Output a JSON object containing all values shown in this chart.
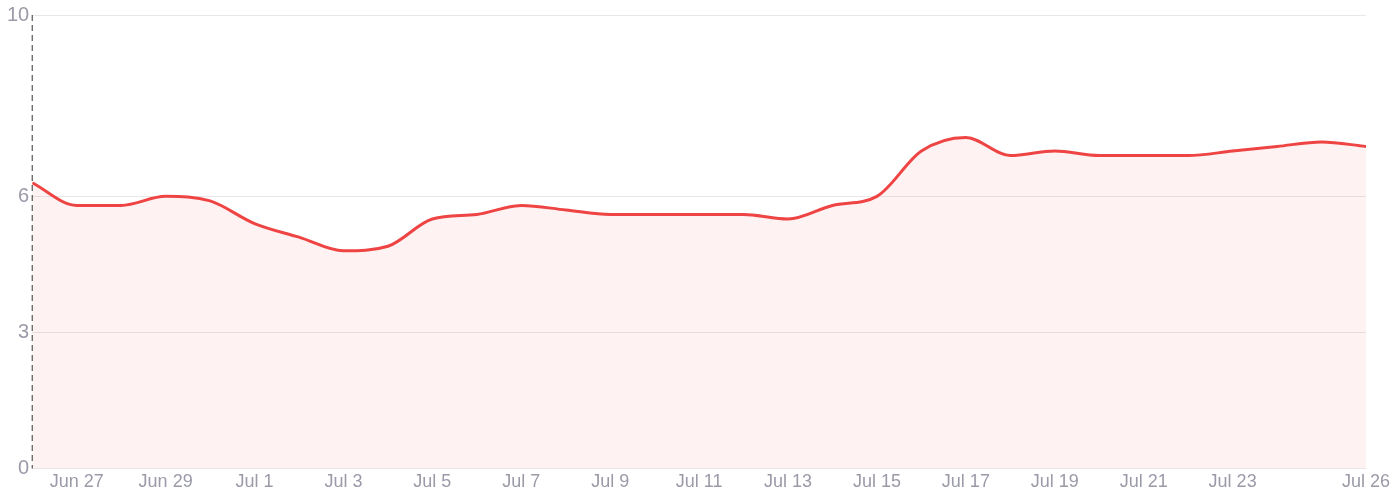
{
  "chart_data": {
    "type": "area",
    "x": [
      "--06-26",
      "--06-27",
      "--06-28",
      "--06-29",
      "--06-30",
      "--07-01",
      "--07-02",
      "--07-03",
      "--07-04",
      "--07-05",
      "--07-06",
      "--07-07",
      "--07-08",
      "--07-09",
      "--07-10",
      "--07-11",
      "--07-12",
      "--07-13",
      "--07-14",
      "--07-15",
      "--07-16",
      "--07-17",
      "--07-18",
      "--07-19",
      "--07-20",
      "--07-21",
      "--07-22",
      "--07-23",
      "--07-24",
      "--07-25",
      "--07-26"
    ],
    "series": [
      {
        "color": "#ef4444",
        "values": [
          6.3,
          5.8,
          5.8,
          6.0,
          5.9,
          5.4,
          5.1,
          4.8,
          4.9,
          5.5,
          5.6,
          5.8,
          5.7,
          5.6,
          5.6,
          5.6,
          5.6,
          5.5,
          5.8,
          6.0,
          7.0,
          7.3,
          6.9,
          7.0,
          6.9,
          6.9,
          6.9,
          7.0,
          7.1,
          7.2,
          7.1
        ]
      }
    ],
    "xlim": [
      "--06-26",
      "--07-26"
    ],
    "xticks": [
      {
        "value": "--06-27",
        "label": "Jun 27"
      },
      {
        "value": "--06-29",
        "label": "Jun 29"
      },
      {
        "value": "--07-01",
        "label": "Jul 1"
      },
      {
        "value": "--07-03",
        "label": "Jul 3"
      },
      {
        "value": "--07-05",
        "label": "Jul 5"
      },
      {
        "value": "--07-07",
        "label": "Jul 7"
      },
      {
        "value": "--07-09",
        "label": "Jul 9"
      },
      {
        "value": "--07-11",
        "label": "Jul 11"
      },
      {
        "value": "--07-13",
        "label": "Jul 13"
      },
      {
        "value": "--07-15",
        "label": "Jul 15"
      },
      {
        "value": "--07-17",
        "label": "Jul 17"
      },
      {
        "value": "--07-19",
        "label": "Jul 19"
      },
      {
        "value": "--07-21",
        "label": "Jul 21"
      },
      {
        "value": "--07-23",
        "label": "Jul 23"
      },
      {
        "value": "--07-26",
        "label": "Jul 26"
      }
    ],
    "ylim": [
      0,
      10
    ],
    "yticks": [
      0,
      3,
      6,
      10
    ],
    "grid": "y",
    "legend": false,
    "marker": "none",
    "line_style": "solid",
    "ref_lines": [
      {
        "axis": "x",
        "value": "--06-26",
        "line_style": "dashed",
        "color": "#555555"
      }
    ]
  }
}
